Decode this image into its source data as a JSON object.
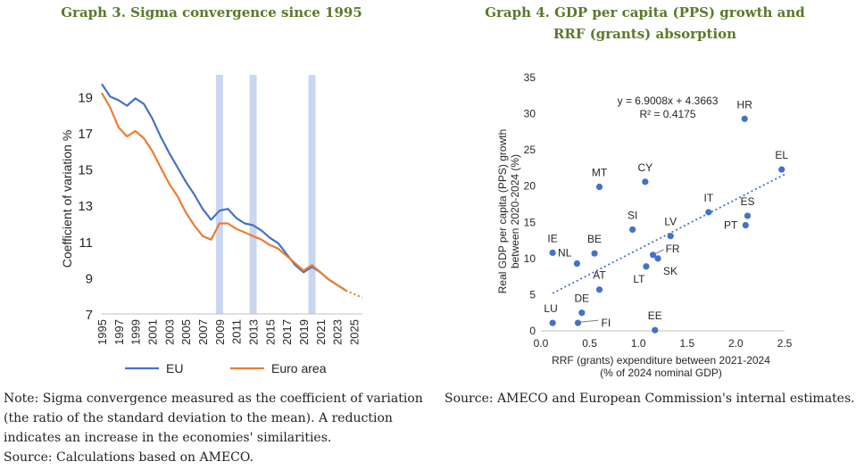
{
  "graph3": {
    "title": "Graph 3. Sigma convergence since 1995",
    "note_lines": [
      "Note: Sigma convergence measured as the coefficient of variation",
      "(the ratio of the standard deviation to the mean). A reduction",
      "indicates an increase in the economies' similarities."
    ],
    "source": "Source: Calculations based on AMECO."
  },
  "graph4": {
    "title_line1": "Graph 4. GDP per capita (PPS) growth and",
    "title_line2": "RRF (grants) absorption",
    "source": "Source: AMECO and European Commission's internal estimates."
  },
  "colors": {
    "eu": "#4472c4",
    "euro_area": "#ed7d31",
    "band": "#c9d6ef",
    "point": "#4472c4",
    "title": "#5a7a2a"
  },
  "chart_data": [
    {
      "type": "line",
      "title": "Graph 3. Sigma convergence since 1995",
      "ylabel": "Coefficient of variation %",
      "xlabel": "",
      "ylim": [
        7,
        20
      ],
      "yticks": [
        7,
        9,
        11,
        13,
        15,
        17,
        19
      ],
      "xlim": [
        1995,
        2026
      ],
      "xticks": [
        1995,
        1997,
        1999,
        2001,
        2003,
        2005,
        2007,
        2009,
        2011,
        2013,
        2015,
        2017,
        2019,
        2021,
        2023,
        2025
      ],
      "shaded_years": [
        2009,
        2013,
        2020
      ],
      "grid": false,
      "legend": "bottom",
      "series": [
        {
          "name": "EU",
          "x": [
            1995,
            1996,
            1997,
            1998,
            1999,
            2000,
            2001,
            2002,
            2003,
            2004,
            2005,
            2006,
            2007,
            2008,
            2009,
            2010,
            2011,
            2012,
            2013,
            2014,
            2015,
            2016,
            2017,
            2018,
            2019,
            2020,
            2021,
            2022,
            2023,
            2024
          ],
          "y": [
            19.7,
            19.0,
            18.8,
            18.5,
            18.9,
            18.6,
            17.8,
            16.8,
            15.9,
            15.1,
            14.3,
            13.6,
            12.8,
            12.2,
            12.7,
            12.8,
            12.3,
            12.0,
            11.9,
            11.6,
            11.2,
            10.9,
            10.3,
            9.7,
            9.3,
            9.6,
            9.3,
            8.9,
            8.6,
            8.3
          ],
          "projection_from": null
        },
        {
          "name": "Euro area",
          "x": [
            1995,
            1996,
            1997,
            1998,
            1999,
            2000,
            2001,
            2002,
            2003,
            2004,
            2005,
            2006,
            2007,
            2008,
            2009,
            2010,
            2011,
            2012,
            2013,
            2014,
            2015,
            2016,
            2017,
            2018,
            2019,
            2020,
            2021,
            2022,
            2023,
            2024,
            2025,
            2026
          ],
          "y": [
            19.2,
            18.4,
            17.3,
            16.8,
            17.1,
            16.7,
            16.0,
            15.1,
            14.2,
            13.5,
            12.6,
            11.9,
            11.3,
            11.1,
            12.0,
            12.0,
            11.7,
            11.5,
            11.3,
            11.1,
            10.8,
            10.6,
            10.2,
            9.8,
            9.4,
            9.7,
            9.3,
            8.9,
            8.6,
            8.3,
            8.1,
            7.9
          ],
          "projection_from": 2024
        }
      ]
    },
    {
      "type": "scatter",
      "title": "Graph 4. GDP per capita (PPS) growth and RRF (grants) absorption",
      "xlabel_line1": "RRF (grants) expenditure between 2021-2024",
      "xlabel_line2": "(% of 2024 nominal GDP)",
      "ylabel_line1": "Real GDP per capita (PPS) growth",
      "ylabel_line2": "between 2020-2024 (%)",
      "xlim": [
        0.0,
        2.5
      ],
      "ylim": [
        0,
        35
      ],
      "xticks": [
        "0.0",
        "0.5",
        "1.0",
        "1.5",
        "2.0",
        "2.5"
      ],
      "yticks": [
        "0",
        "5",
        "10",
        "15",
        "20",
        "25",
        "30",
        "35"
      ],
      "grid": false,
      "trendline": {
        "slope": 6.9008,
        "intercept": 4.3663,
        "equation": "y = 6.9008x + 4.3663",
        "r2": "R² = 0.4175"
      },
      "points": [
        {
          "label": "HR",
          "x": 2.09,
          "y": 29.3
        },
        {
          "label": "EL",
          "x": 2.47,
          "y": 22.3
        },
        {
          "label": "MT",
          "x": 0.6,
          "y": 19.9
        },
        {
          "label": "CY",
          "x": 1.07,
          "y": 20.6
        },
        {
          "label": "IT",
          "x": 1.72,
          "y": 16.4
        },
        {
          "label": "ES",
          "x": 2.12,
          "y": 15.9
        },
        {
          "label": "PT",
          "x": 2.1,
          "y": 14.6
        },
        {
          "label": "SI",
          "x": 0.94,
          "y": 14.0
        },
        {
          "label": "LV",
          "x": 1.33,
          "y": 13.1
        },
        {
          "label": "FR",
          "x": 1.15,
          "y": 10.5
        },
        {
          "label": "SK",
          "x": 1.2,
          "y": 10.0
        },
        {
          "label": "LT",
          "x": 1.08,
          "y": 8.9
        },
        {
          "label": "IE",
          "x": 0.12,
          "y": 10.8
        },
        {
          "label": "NL",
          "x": 0.37,
          "y": 9.3
        },
        {
          "label": "BE",
          "x": 0.55,
          "y": 10.7
        },
        {
          "label": "AT",
          "x": 0.6,
          "y": 5.7
        },
        {
          "label": "DE",
          "x": 0.42,
          "y": 2.5
        },
        {
          "label": "LU",
          "x": 0.12,
          "y": 1.1
        },
        {
          "label": "FI",
          "x": 0.38,
          "y": 1.1
        },
        {
          "label": "EE",
          "x": 1.17,
          "y": 0.1
        }
      ]
    }
  ]
}
